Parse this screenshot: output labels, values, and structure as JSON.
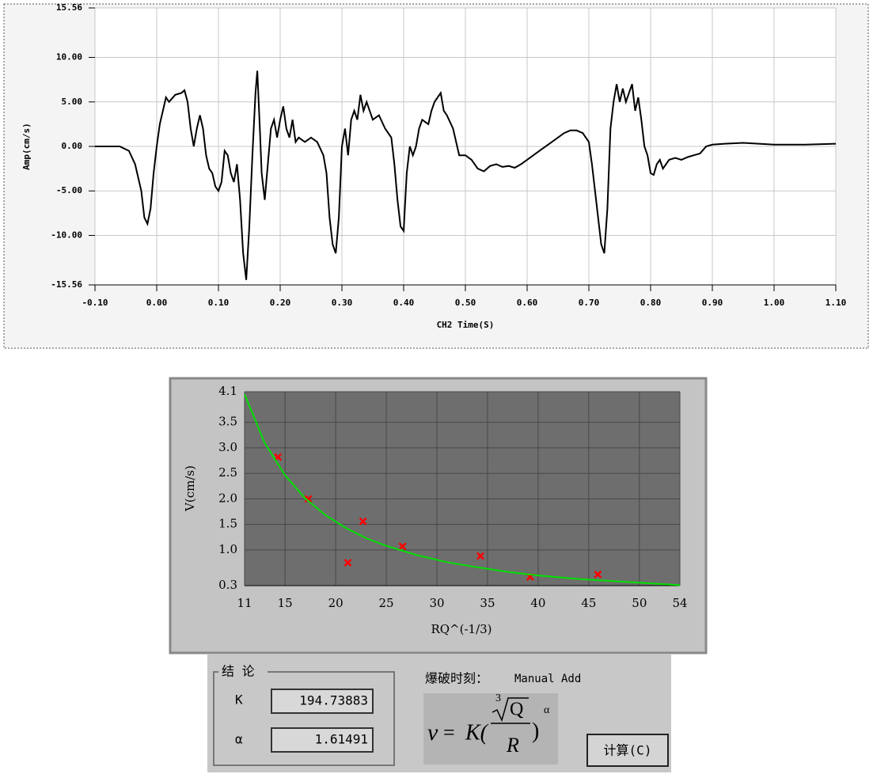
{
  "chart_data": [
    {
      "type": "line",
      "x_label": "CH2 Time(S)",
      "y_label": "Amp(cm/s)",
      "xlim": [
        -0.1,
        1.1
      ],
      "ylim": [
        -15.56,
        15.56
      ],
      "grid": true,
      "xticks": [
        {
          "value": -0.1,
          "label": "-0.10"
        },
        {
          "value": 0,
          "label": "0.00"
        },
        {
          "value": 0.1,
          "label": "0.10"
        },
        {
          "value": 0.2,
          "label": "0.20"
        },
        {
          "value": 0.3,
          "label": "0.30"
        },
        {
          "value": 0.4,
          "label": "0.40"
        },
        {
          "value": 0.5,
          "label": "0.50"
        },
        {
          "value": 0.6,
          "label": "0.60"
        },
        {
          "value": 0.7,
          "label": "0.70"
        },
        {
          "value": 0.8,
          "label": "0.80"
        },
        {
          "value": 0.9,
          "label": "0.90"
        },
        {
          "value": 1,
          "label": "1.00"
        },
        {
          "value": 1.1,
          "label": "1.10"
        }
      ],
      "yticks": [
        15.56,
        {
          "value": 10,
          "label": "10.00"
        },
        {
          "value": 5,
          "label": "5.00"
        },
        {
          "value": 0,
          "label": "0.00"
        },
        {
          "value": -5,
          "label": "-5.00"
        },
        {
          "value": -10,
          "label": "-10.00"
        },
        -15.56
      ],
      "series": [
        {
          "color": "#000000",
          "x": [
            -0.1,
            -0.06,
            -0.045,
            -0.035,
            -0.025,
            -0.02,
            -0.015,
            -0.01,
            -0.005,
            0,
            0.005,
            0.01,
            0.015,
            0.02,
            0.03,
            0.04,
            0.045,
            0.05,
            0.055,
            0.06,
            0.065,
            0.07,
            0.075,
            0.08,
            0.085,
            0.09,
            0.095,
            0.1,
            0.105,
            0.11,
            0.115,
            0.12,
            0.125,
            0.13,
            0.135,
            0.14,
            0.145,
            0.15,
            0.155,
            0.16,
            0.163,
            0.167,
            0.17,
            0.175,
            0.18,
            0.185,
            0.19,
            0.195,
            0.2,
            0.205,
            0.21,
            0.215,
            0.22,
            0.225,
            0.23,
            0.24,
            0.25,
            0.26,
            0.27,
            0.275,
            0.28,
            0.285,
            0.29,
            0.295,
            0.3,
            0.305,
            0.31,
            0.315,
            0.32,
            0.325,
            0.33,
            0.335,
            0.34,
            0.35,
            0.36,
            0.37,
            0.38,
            0.385,
            0.39,
            0.395,
            0.4,
            0.405,
            0.41,
            0.415,
            0.42,
            0.425,
            0.43,
            0.44,
            0.445,
            0.45,
            0.455,
            0.46,
            0.465,
            0.47,
            0.48,
            0.49,
            0.5,
            0.51,
            0.52,
            0.53,
            0.54,
            0.55,
            0.56,
            0.57,
            0.58,
            0.59,
            0.6,
            0.62,
            0.64,
            0.66,
            0.67,
            0.68,
            0.69,
            0.7,
            0.705,
            0.71,
            0.715,
            0.72,
            0.725,
            0.73,
            0.735,
            0.74,
            0.745,
            0.75,
            0.755,
            0.76,
            0.77,
            0.775,
            0.78,
            0.785,
            0.79,
            0.795,
            0.8,
            0.805,
            0.81,
            0.815,
            0.82,
            0.83,
            0.84,
            0.85,
            0.86,
            0.87,
            0.88,
            0.89,
            0.9,
            0.92,
            0.95,
            1,
            1.05,
            1.1
          ],
          "values": [
            0,
            0,
            -0.5,
            -2,
            -5,
            -8,
            -8.7,
            -7,
            -3,
            0,
            2.5,
            4,
            5.5,
            5,
            5.8,
            6,
            6.3,
            5,
            2,
            0,
            2,
            3.5,
            2,
            -1,
            -2.5,
            -3,
            -4.5,
            -5,
            -4,
            -0.5,
            -1,
            -3,
            -4,
            -2,
            -6,
            -12,
            -15,
            -9,
            -1,
            6,
            8.5,
            2,
            -3,
            -6,
            -2,
            2,
            3,
            1,
            3,
            4.5,
            2,
            1,
            3,
            0.5,
            1,
            0.5,
            1,
            0.5,
            -1,
            -3,
            -8,
            -11,
            -12,
            -8,
            0,
            2,
            -1,
            3,
            4,
            3,
            5.8,
            4,
            5,
            3,
            3.5,
            2,
            1,
            -2,
            -6,
            -9,
            -9.5,
            -3,
            0,
            -1,
            0,
            2,
            3,
            2.5,
            4,
            5,
            5.5,
            6,
            4,
            3.5,
            2,
            -1,
            -1,
            -1.5,
            -2.5,
            -2.8,
            -2.2,
            -2,
            -2.3,
            -2.2,
            -2.4,
            -2,
            -1.5,
            -0.5,
            0.5,
            1.5,
            1.8,
            1.8,
            1.5,
            0.5,
            -2,
            -5,
            -8,
            -11,
            -12,
            -7,
            2,
            5,
            7,
            5,
            6.5,
            5,
            7,
            4,
            5.5,
            3,
            0,
            -1,
            -3,
            -3.2,
            -2,
            -1.5,
            -2.5,
            -1.5,
            -1.3,
            -1.5,
            -1.2,
            -1,
            -0.8,
            0,
            0.2,
            0.3,
            0.4,
            0.2,
            0.2,
            0.3
          ]
        }
      ]
    },
    {
      "type": "scatter",
      "x_label": "RQ^(-1/3)",
      "y_label": "V(cm/s)",
      "xlim": [
        11,
        54
      ],
      "ylim": [
        0.3,
        4.1
      ],
      "grid": true,
      "xticks": [
        11,
        15,
        20,
        25,
        30,
        35,
        40,
        45,
        50,
        54
      ],
      "yticks": [
        4.1,
        3.5,
        {
          "value": 3,
          "label": "3.0"
        },
        2.5,
        {
          "value": 2,
          "label": "2.0"
        },
        1.5,
        {
          "value": 1,
          "label": "1.0"
        },
        0.3
      ],
      "series": [
        {
          "color": "#ff0000",
          "style": "markers",
          "x": [
            14.3,
            17.3,
            21.2,
            22.7,
            26.6,
            34.3,
            39.2,
            45.9
          ],
          "values": [
            2.82,
            2.0,
            0.75,
            1.56,
            1.07,
            0.88,
            0.47,
            0.52
          ]
        },
        {
          "color": "#00e000",
          "style": "line",
          "x": [
            11,
            13,
            15,
            17,
            19,
            21,
            23,
            25,
            28,
            31,
            34,
            37,
            40,
            44,
            48,
            54
          ],
          "values": [
            4.05,
            3.09,
            2.46,
            2.01,
            1.68,
            1.43,
            1.23,
            1.08,
            0.9,
            0.76,
            0.66,
            0.57,
            0.5,
            0.43,
            0.38,
            0.31
          ]
        }
      ]
    }
  ],
  "panel": {
    "group_title": "结 论",
    "k_label": "K",
    "k_value": "194.73883",
    "alpha_label": "α",
    "alpha_value": "1.61491",
    "blast_time_label": "爆破时刻：",
    "blast_time_value": "Manual Add",
    "formula": {
      "v": "v",
      "eq": "=",
      "k": "K(",
      "root_index": "3",
      "numerator": "Q",
      "denominator": "R",
      "close": ")",
      "exponent": "α"
    },
    "button": "计算(C)"
  }
}
